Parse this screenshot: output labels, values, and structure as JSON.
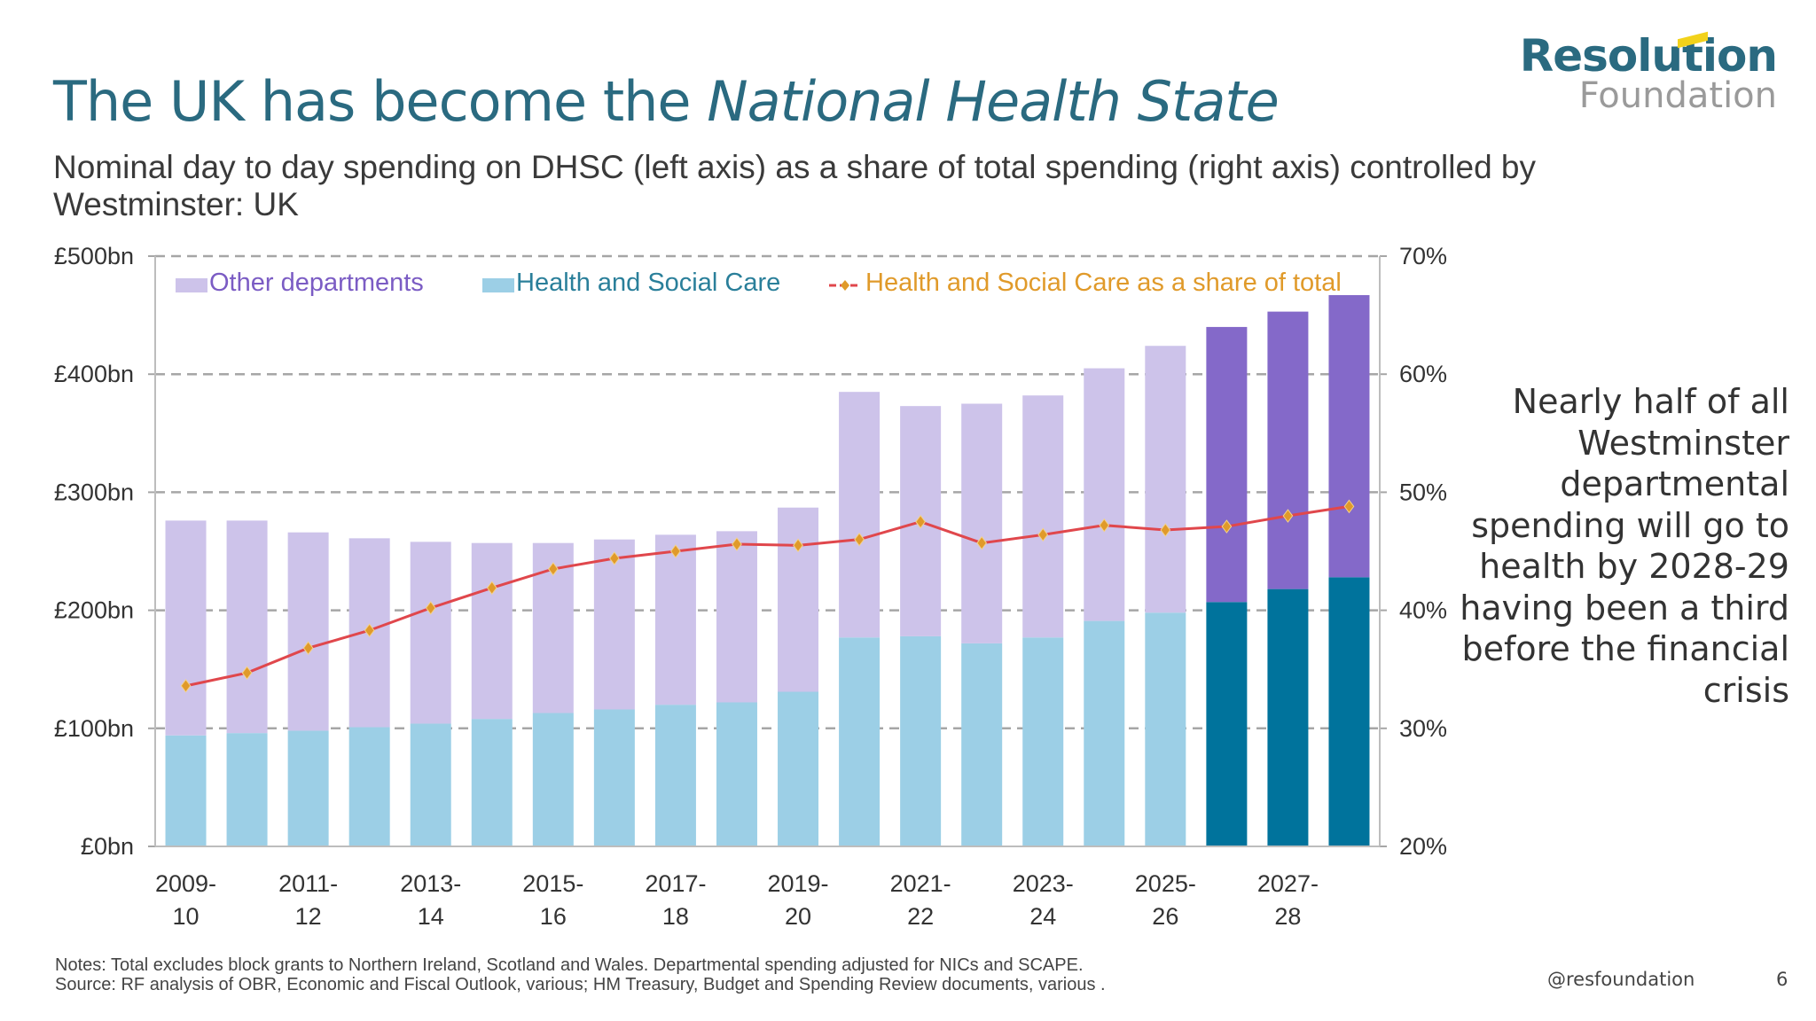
{
  "title": {
    "plain": "The UK has become the ",
    "italic": "National Health State"
  },
  "subtitle": "Nominal day to day spending on DHSC (left axis) as a share of total spending (right axis) controlled by Westminster: UK",
  "logo": {
    "top": "Resolution",
    "bottom": "Foundation"
  },
  "callout": "Nearly half of all Westminster departmental spending will go to health by 2028-29 having been a third before the financial crisis",
  "notes": {
    "line1": "Notes: Total excludes block grants to Northern Ireland, Scotland and Wales. Departmental spending adjusted for NICs and SCAPE.",
    "line2": "Source: RF analysis of OBR, Economic and Fiscal Outlook, various; HM Treasury, Budget and Spending Review documents, various  ."
  },
  "footer": {
    "handle": "@resfoundation",
    "page": "6"
  },
  "colors": {
    "title": "#2a6a80",
    "other_departments": "#cdc3ea",
    "health_social_care": "#9ccfe6",
    "other_departments_forecast": "#8469c9",
    "health_social_care_forecast": "#00739c",
    "share_line": "#e0474c",
    "share_marker": "#e09a2a",
    "gridline": "#a6a6a6"
  },
  "chart_data": {
    "type": "bar",
    "stacked": true,
    "title": "",
    "categories": [
      "2009-10",
      "2010-11",
      "2011-12",
      "2012-13",
      "2013-14",
      "2014-15",
      "2015-16",
      "2016-17",
      "2017-18",
      "2018-19",
      "2019-20",
      "2020-21",
      "2021-22",
      "2022-23",
      "2023-24",
      "2024-25",
      "2025-26",
      "2026-27",
      "2027-28",
      "2028-29"
    ],
    "x_tick_labels": [
      {
        "category": "2009-10",
        "line1": "2009-",
        "line2": "10"
      },
      {
        "category": "2011-12",
        "line1": "2011-",
        "line2": "12"
      },
      {
        "category": "2013-14",
        "line1": "2013-",
        "line2": "14"
      },
      {
        "category": "2015-16",
        "line1": "2015-",
        "line2": "16"
      },
      {
        "category": "2017-18",
        "line1": "2017-",
        "line2": "18"
      },
      {
        "category": "2019-20",
        "line1": "2019-",
        "line2": "20"
      },
      {
        "category": "2021-22",
        "line1": "2021-",
        "line2": "22"
      },
      {
        "category": "2023-24",
        "line1": "2023-",
        "line2": "24"
      },
      {
        "category": "2025-26",
        "line1": "2025-",
        "line2": "26"
      },
      {
        "category": "2027-28",
        "line1": "2027-",
        "line2": "28"
      }
    ],
    "forecast_from_index": 17,
    "series": [
      {
        "name": "Health and Social Care",
        "axis": "left",
        "kind": "bar",
        "values": [
          94,
          96,
          98,
          101,
          104,
          108,
          113,
          116,
          120,
          122,
          131,
          177,
          178,
          172,
          177,
          191,
          198,
          207,
          218,
          228
        ]
      },
      {
        "name": "Other departments",
        "axis": "left",
        "kind": "bar",
        "values": [
          182,
          180,
          168,
          160,
          154,
          149,
          144,
          144,
          144,
          145,
          156,
          208,
          195,
          203,
          205,
          214,
          226,
          233,
          235,
          239
        ]
      },
      {
        "name": "Health and Social Care as a share of total",
        "axis": "right",
        "kind": "line",
        "values": [
          33.6,
          34.7,
          36.8,
          38.3,
          40.2,
          41.9,
          43.5,
          44.4,
          45.0,
          45.6,
          45.5,
          46.0,
          47.5,
          45.7,
          46.4,
          47.2,
          46.8,
          47.1,
          48.0,
          48.8
        ]
      }
    ],
    "legend": {
      "position": "top",
      "items": [
        {
          "label": "Other departments",
          "color_key": "other_departments",
          "text_color": "#7b5cc4",
          "symbol": "square"
        },
        {
          "label": "Health and Social Care",
          "color_key": "health_social_care",
          "text_color": "#2a7f9a",
          "symbol": "square"
        },
        {
          "label": "Health and Social Care as a share of total",
          "color_key": "share_line",
          "text_color": "#e09a2a",
          "symbol": "line-diamond"
        }
      ]
    },
    "left_axis": {
      "label": "",
      "min": 0,
      "max": 500,
      "ticks": [
        0,
        100,
        200,
        300,
        400,
        500
      ],
      "tick_labels": [
        "£0bn",
        "£100bn",
        "£200bn",
        "£300bn",
        "£400bn",
        "£500bn"
      ]
    },
    "right_axis": {
      "label": "",
      "min": 20,
      "max": 70,
      "ticks": [
        20,
        30,
        40,
        50,
        60,
        70
      ],
      "tick_labels": [
        "20%",
        "30%",
        "40%",
        "50%",
        "60%",
        "70%"
      ]
    },
    "grid": true,
    "xlabel": "",
    "ylabel": ""
  }
}
